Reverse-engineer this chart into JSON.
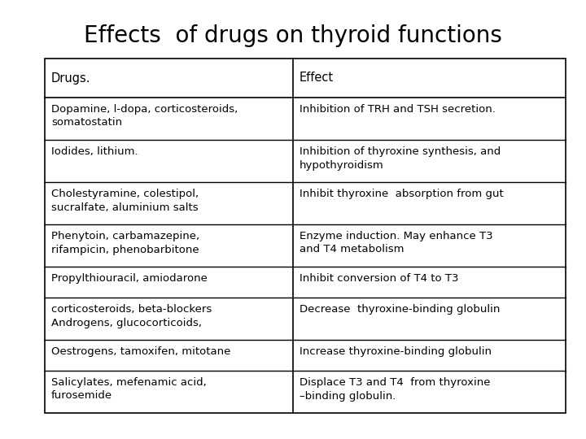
{
  "title": "Effects  of drugs on thyroid functions",
  "title_fontsize": 20,
  "title_font": "DejaVu Sans",
  "background_color": "#ffffff",
  "col1_header": "Drugs.",
  "col2_header": "Effect",
  "rows": [
    {
      "drug": "Dopamine, l-dopa, corticosteroids,\nsomatostatin",
      "effect": "Inhibition of TRH and TSH secretion."
    },
    {
      "drug": "Iodides, lithium.",
      "effect": "Inhibition of thyroxine synthesis, and\nhypothyroidism"
    },
    {
      "drug": "Cholestyramine, colestipol,\nsucralfate, aluminium salts",
      "effect": "Inhibit thyroxine  absorption from gut"
    },
    {
      "drug": "Phenytoin, carbamazepine,\nrifampicin, phenobarbitone",
      "effect": "Enzyme induction. May enhance T3\nand T4 metabolism"
    },
    {
      "drug": "Propylthiouracil, amiodarone",
      "effect": "Inhibit conversion of T4 to T3"
    },
    {
      "drug": "corticosteroids, beta-blockers\nAndrogens, glucocorticoids,",
      "effect": "Decrease  thyroxine-binding globulin"
    },
    {
      "drug": "Oestrogens, tamoxifen, mitotane",
      "effect": "Increase thyroxine-binding globulin"
    },
    {
      "drug": "Salicylates, mefenamic acid,\nfurosemide",
      "effect": "Displace T3 and T4  from thyroxine\n–binding globulin."
    }
  ],
  "text_color": "#000000",
  "line_color": "#000000",
  "font_size": 9.5,
  "header_font_size": 10.5
}
